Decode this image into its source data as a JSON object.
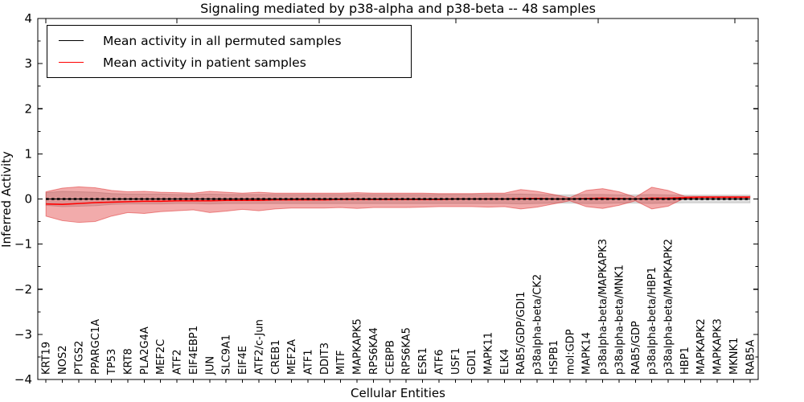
{
  "figure": {
    "title": "Signaling mediated by p38-alpha and p38-beta -- 48 samples",
    "xlabel": "Cellular Entities",
    "ylabel": "Inferred Activity"
  },
  "legend": {
    "items": [
      {
        "label": "Mean activity in all permuted samples",
        "color": "#000000"
      },
      {
        "label": "Mean activity in patient samples",
        "color": "#ff0000"
      }
    ]
  },
  "chart_data": {
    "type": "line",
    "title": "Signaling mediated by p38-alpha and p38-beta -- 48 samples",
    "xlabel": "Cellular Entities",
    "ylabel": "Inferred Activity",
    "ylim": [
      -4,
      4
    ],
    "ytick_step": 1,
    "y_minor_step": 0.5,
    "grid": false,
    "legend_position": "upper left",
    "x_tick_label_rotation": 90,
    "categories": [
      "KRT19",
      "NOS2",
      "PTGS2",
      "PPARGC1A",
      "TP53",
      "KRT8",
      "PLA2G4A",
      "MEF2C",
      "ATF2",
      "EIF4EBP1",
      "JUN",
      "SLC9A1",
      "EIF4E",
      "ATF2/c-Jun",
      "CREB1",
      "MEF2A",
      "ATF1",
      "DDIT3",
      "MITF",
      "MAPKAPK5",
      "RPS6KA4",
      "CEBPB",
      "RPS6KA5",
      "ESR1",
      "ATF6",
      "USF1",
      "GDI1",
      "MAPK11",
      "ELK4",
      "RAB5/GDP/GDI1",
      "p38alpha-beta/CK2",
      "HSPB1",
      "mol:GDP",
      "MAPK14",
      "p38alpha-beta/MAPKAPK3",
      "p38alpha-beta/MNK1",
      "RAB5/GDP",
      "p38alpha-beta/HBP1",
      "p38alpha-beta/MAPKAPK2",
      "HBP1",
      "MAPKAPK2",
      "MAPKAPK3",
      "MKNK1",
      "RAB5A"
    ],
    "series": [
      {
        "name": "Mean activity in all permuted samples",
        "color": "#000000",
        "line_style": "dashed",
        "values": [
          0,
          0,
          0,
          0,
          0,
          0,
          0,
          0,
          0,
          0,
          0,
          0,
          0,
          0,
          0,
          0,
          0,
          0,
          0,
          0,
          0,
          0,
          0,
          0,
          0,
          0,
          0,
          0,
          0,
          0,
          0,
          0,
          0,
          0,
          0,
          0,
          0,
          0,
          0,
          0,
          0,
          0,
          0,
          0
        ]
      },
      {
        "name": "Mean activity in patient samples",
        "color": "#ff0000",
        "line_style": "solid",
        "values": [
          -0.11,
          -0.12,
          -0.1,
          -0.08,
          -0.07,
          -0.06,
          -0.05,
          -0.05,
          -0.04,
          -0.04,
          -0.04,
          -0.03,
          -0.03,
          -0.03,
          -0.02,
          -0.02,
          -0.02,
          -0.02,
          -0.01,
          -0.01,
          -0.01,
          -0.01,
          -0.01,
          -0.01,
          -0.01,
          0.0,
          0.0,
          0.0,
          0.0,
          0.01,
          0.01,
          0.0,
          0.0,
          0.01,
          0.02,
          0.01,
          0.0,
          0.02,
          0.02,
          0.03,
          0.04,
          0.04,
          0.04,
          0.04
        ]
      }
    ],
    "bands": [
      {
        "name": "permuted samples spread",
        "color": "#999999",
        "opacity": 0.35,
        "upper": [
          0.14,
          0.17,
          0.16,
          0.15,
          0.12,
          0.11,
          0.11,
          0.11,
          0.1,
          0.1,
          0.11,
          0.1,
          0.1,
          0.1,
          0.1,
          0.1,
          0.1,
          0.1,
          0.1,
          0.1,
          0.1,
          0.1,
          0.1,
          0.1,
          0.1,
          0.1,
          0.1,
          0.1,
          0.1,
          0.11,
          0.1,
          0.09,
          0.09,
          0.1,
          0.1,
          0.09,
          0.09,
          0.1,
          0.09,
          0.085,
          0.085,
          0.085,
          0.085,
          0.085
        ],
        "lower": [
          -0.14,
          -0.17,
          -0.16,
          -0.15,
          -0.12,
          -0.11,
          -0.11,
          -0.11,
          -0.1,
          -0.1,
          -0.11,
          -0.1,
          -0.1,
          -0.1,
          -0.1,
          -0.1,
          -0.1,
          -0.1,
          -0.1,
          -0.1,
          -0.1,
          -0.1,
          -0.1,
          -0.1,
          -0.1,
          -0.1,
          -0.1,
          -0.1,
          -0.1,
          -0.11,
          -0.1,
          -0.09,
          -0.09,
          -0.1,
          -0.1,
          -0.09,
          -0.09,
          -0.1,
          -0.09,
          -0.085,
          -0.085,
          -0.085,
          -0.085,
          -0.085
        ]
      },
      {
        "name": "patient samples spread",
        "color": "#dd2222",
        "opacity": 0.38,
        "upper": [
          0.16,
          0.24,
          0.27,
          0.25,
          0.19,
          0.16,
          0.17,
          0.15,
          0.14,
          0.13,
          0.17,
          0.15,
          0.13,
          0.15,
          0.13,
          0.13,
          0.13,
          0.13,
          0.13,
          0.14,
          0.13,
          0.13,
          0.13,
          0.13,
          0.12,
          0.12,
          0.12,
          0.13,
          0.13,
          0.21,
          0.17,
          0.1,
          0.03,
          0.19,
          0.23,
          0.16,
          0.04,
          0.26,
          0.19,
          0.06,
          0.055,
          0.055,
          0.055,
          0.055
        ],
        "lower": [
          -0.38,
          -0.48,
          -0.52,
          -0.5,
          -0.38,
          -0.3,
          -0.32,
          -0.28,
          -0.26,
          -0.24,
          -0.3,
          -0.27,
          -0.23,
          -0.26,
          -0.22,
          -0.2,
          -0.2,
          -0.2,
          -0.19,
          -0.21,
          -0.19,
          -0.19,
          -0.19,
          -0.18,
          -0.17,
          -0.17,
          -0.17,
          -0.18,
          -0.17,
          -0.22,
          -0.18,
          -0.11,
          -0.04,
          -0.17,
          -0.21,
          -0.14,
          -0.04,
          -0.22,
          -0.16,
          0.02,
          0.025,
          0.025,
          0.025,
          0.025
        ]
      }
    ]
  }
}
